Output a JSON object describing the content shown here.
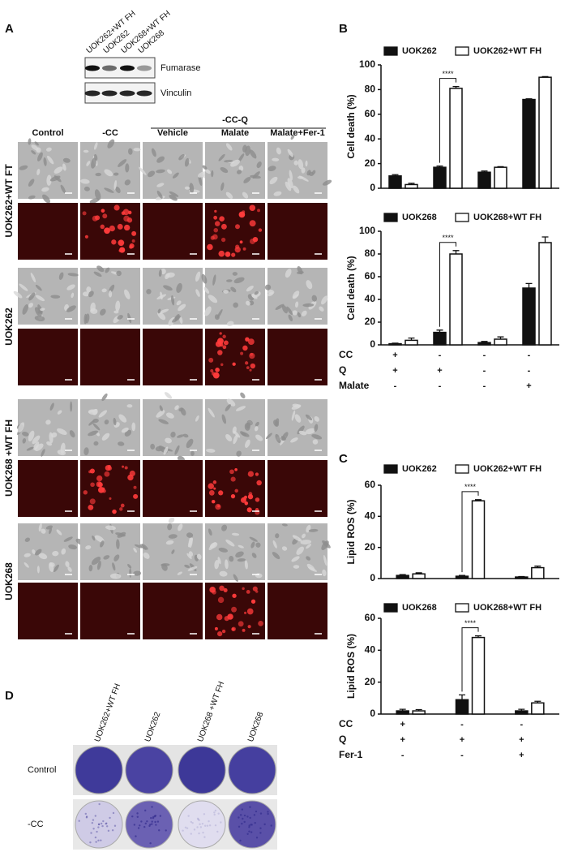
{
  "panels": {
    "a": "A",
    "b": "B",
    "c": "C",
    "d": "D"
  },
  "blot": {
    "lanes": [
      "UOK262+WT FH",
      "UOK262",
      "UOK268+WT FH",
      "UOK268"
    ],
    "bands": [
      "Fumarase",
      "Vinculin"
    ]
  },
  "micrographs": {
    "group_label": "-CC-Q",
    "columns": [
      "Control",
      "-CC",
      "Vehicle",
      "Malate",
      "Malate+Fer-1"
    ],
    "rows": [
      "UOK262+WT FT",
      "UOK262",
      "UOK268 +WT FH",
      "UOK268"
    ]
  },
  "colony": {
    "lanes": [
      "UOK262+WT FH",
      "UOK262",
      "UOK268 +WT FH",
      "UOK268"
    ],
    "rows": [
      "Control",
      "-CC"
    ]
  },
  "chart_data": [
    {
      "type": "bar",
      "ylabel": "Cell death (%)",
      "ylim": [
        0,
        100
      ],
      "yticks": [
        0,
        20,
        40,
        60,
        80,
        100
      ],
      "series": [
        {
          "name": "UOK262",
          "color": "#111111",
          "values": [
            10,
            17,
            13,
            72
          ],
          "errors": [
            1,
            1,
            1,
            0.5
          ]
        },
        {
          "name": "UOK262+WT FH",
          "color": "#ffffff",
          "values": [
            3,
            81,
            17,
            90
          ],
          "errors": [
            1,
            1.5,
            0.5,
            0.5
          ]
        }
      ],
      "annotations": [
        null,
        "****",
        null,
        null
      ]
    },
    {
      "type": "bar",
      "ylabel": "Cell death (%)",
      "ylim": [
        0,
        100
      ],
      "yticks": [
        0,
        20,
        40,
        60,
        80,
        100
      ],
      "series": [
        {
          "name": "UOK268",
          "color": "#111111",
          "values": [
            1,
            11,
            2,
            50
          ],
          "errors": [
            0.5,
            2,
            1,
            4
          ]
        },
        {
          "name": "UOK268+WT FH",
          "color": "#ffffff",
          "values": [
            4,
            80,
            5,
            90
          ],
          "errors": [
            2,
            3,
            2,
            5
          ]
        }
      ],
      "annotations": [
        null,
        "****",
        null,
        null
      ],
      "conditions": [
        {
          "name": "CC",
          "values": [
            "+",
            "-",
            "-",
            "-"
          ]
        },
        {
          "name": "Q",
          "values": [
            "+",
            "+",
            "-",
            "-"
          ]
        },
        {
          "name": "Malate",
          "values": [
            "-",
            "-",
            "-",
            "+"
          ]
        }
      ]
    },
    {
      "type": "bar",
      "ylabel": "Lipid ROS (%)",
      "ylim": [
        0,
        60
      ],
      "yticks": [
        0,
        20,
        40,
        60
      ],
      "series": [
        {
          "name": "UOK262",
          "color": "#111111",
          "values": [
            2,
            1.5,
            1
          ],
          "errors": [
            0.5,
            0.5,
            0.3
          ]
        },
        {
          "name": "UOK262+WT FH",
          "color": "#ffffff",
          "values": [
            3,
            50,
            7
          ],
          "errors": [
            0.7,
            0.7,
            1
          ]
        }
      ],
      "annotations": [
        null,
        "****",
        null
      ]
    },
    {
      "type": "bar",
      "ylabel": "Lipid ROS (%)",
      "ylim": [
        0,
        60
      ],
      "yticks": [
        0,
        20,
        40,
        60
      ],
      "series": [
        {
          "name": "UOK268",
          "color": "#111111",
          "values": [
            2,
            9,
            2
          ],
          "errors": [
            1,
            3,
            1
          ]
        },
        {
          "name": "UOK268+WT FH",
          "color": "#ffffff",
          "values": [
            2,
            48,
            7
          ],
          "errors": [
            0.8,
            1,
            1
          ]
        }
      ],
      "annotations": [
        null,
        "****",
        null
      ],
      "conditions": [
        {
          "name": "CC",
          "values": [
            "+",
            "-",
            "-"
          ]
        },
        {
          "name": "Q",
          "values": [
            "+",
            "+",
            "+"
          ]
        },
        {
          "name": "Fer-1",
          "values": [
            "-",
            "-",
            "+"
          ]
        }
      ]
    }
  ]
}
